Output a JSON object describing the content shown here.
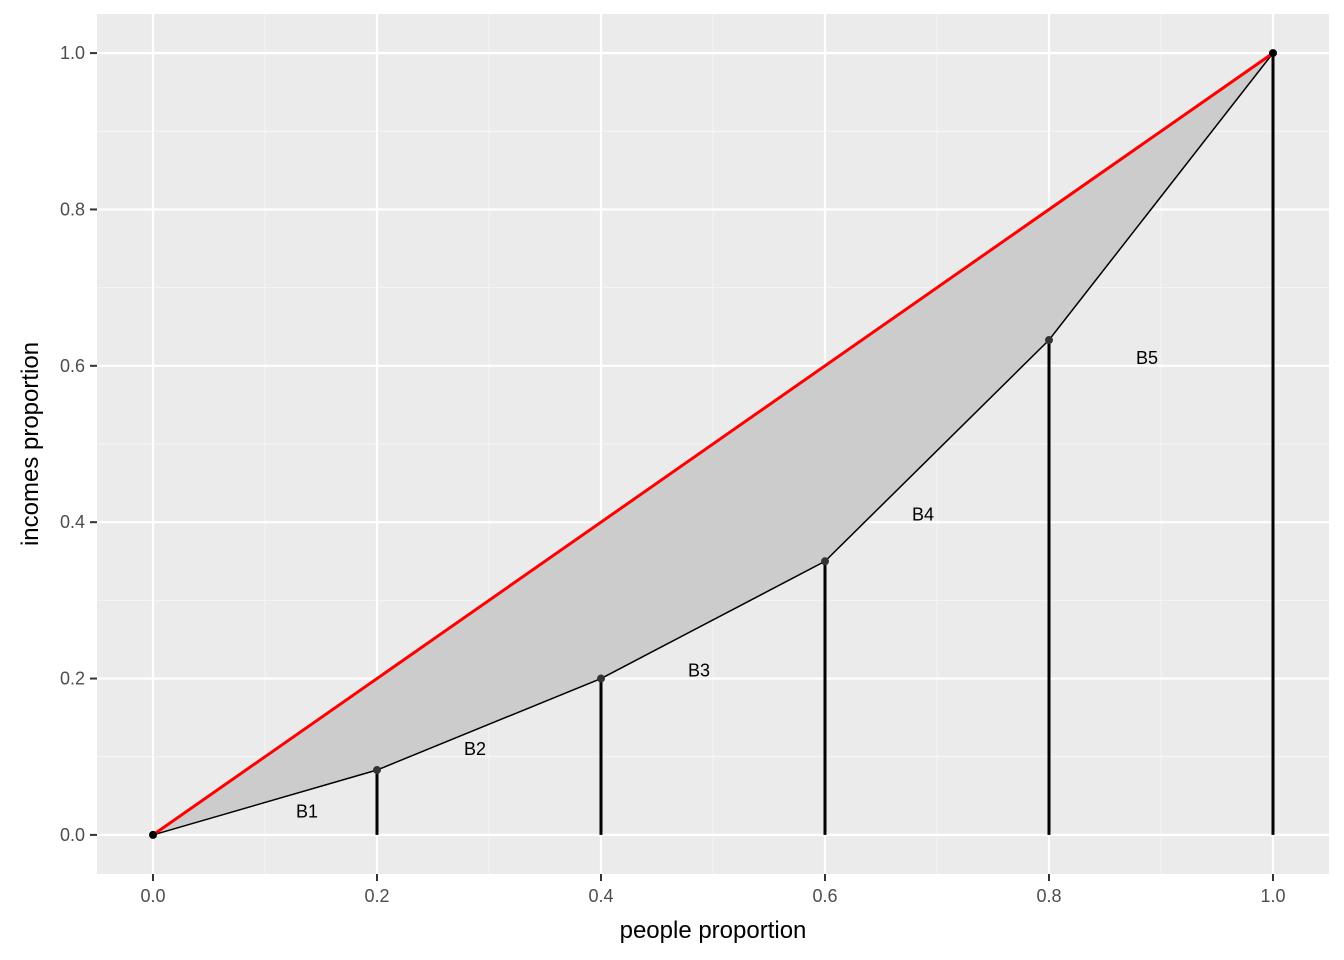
{
  "chart_data": {
    "type": "line",
    "title": "",
    "xlabel": "people proportion",
    "ylabel": "incomes proportion",
    "xlim": [
      -0.05,
      1.05
    ],
    "ylim": [
      -0.05,
      1.05
    ],
    "x_ticks": [
      0.0,
      0.2,
      0.4,
      0.6,
      0.8,
      1.0
    ],
    "x_tick_labels": [
      "0.0",
      "0.2",
      "0.4",
      "0.6",
      "0.8",
      "1.0"
    ],
    "y_ticks": [
      0.0,
      0.2,
      0.4,
      0.6,
      0.8,
      1.0
    ],
    "y_tick_labels": [
      "0.0",
      "0.2",
      "0.4",
      "0.6",
      "0.8",
      "1.0"
    ],
    "x_minor": [
      0.1,
      0.3,
      0.5,
      0.7,
      0.9
    ],
    "y_minor": [
      0.1,
      0.3,
      0.5,
      0.7,
      0.9
    ],
    "grid": true,
    "series": [
      {
        "role": "lorenz_curve",
        "x": [
          0.0,
          0.2,
          0.4,
          0.6,
          0.8,
          1.0
        ],
        "y": [
          0.0,
          0.083,
          0.2,
          0.35,
          0.633,
          1.0
        ],
        "color": "#000000"
      },
      {
        "role": "equality_line",
        "x": [
          0.0,
          1.0
        ],
        "y": [
          0.0,
          1.0
        ],
        "color": "#ff0000"
      }
    ],
    "fill_color": "#cccccc",
    "segment_x": [
      0.2,
      0.4,
      0.6,
      0.8,
      1.0
    ],
    "annotations": [
      {
        "text": "B1",
        "x": 0.1375,
        "y": 0.03
      },
      {
        "text": "B2",
        "x": 0.2875,
        "y": 0.11
      },
      {
        "text": "B3",
        "x": 0.4875,
        "y": 0.21
      },
      {
        "text": "B4",
        "x": 0.6875,
        "y": 0.41
      },
      {
        "text": "B5",
        "x": 0.8875,
        "y": 0.61
      }
    ],
    "colors": {
      "panel": "#ebebeb",
      "grid_major": "#ffffff",
      "grid_minor": "#f5f5f5",
      "tick": "#333333"
    }
  }
}
